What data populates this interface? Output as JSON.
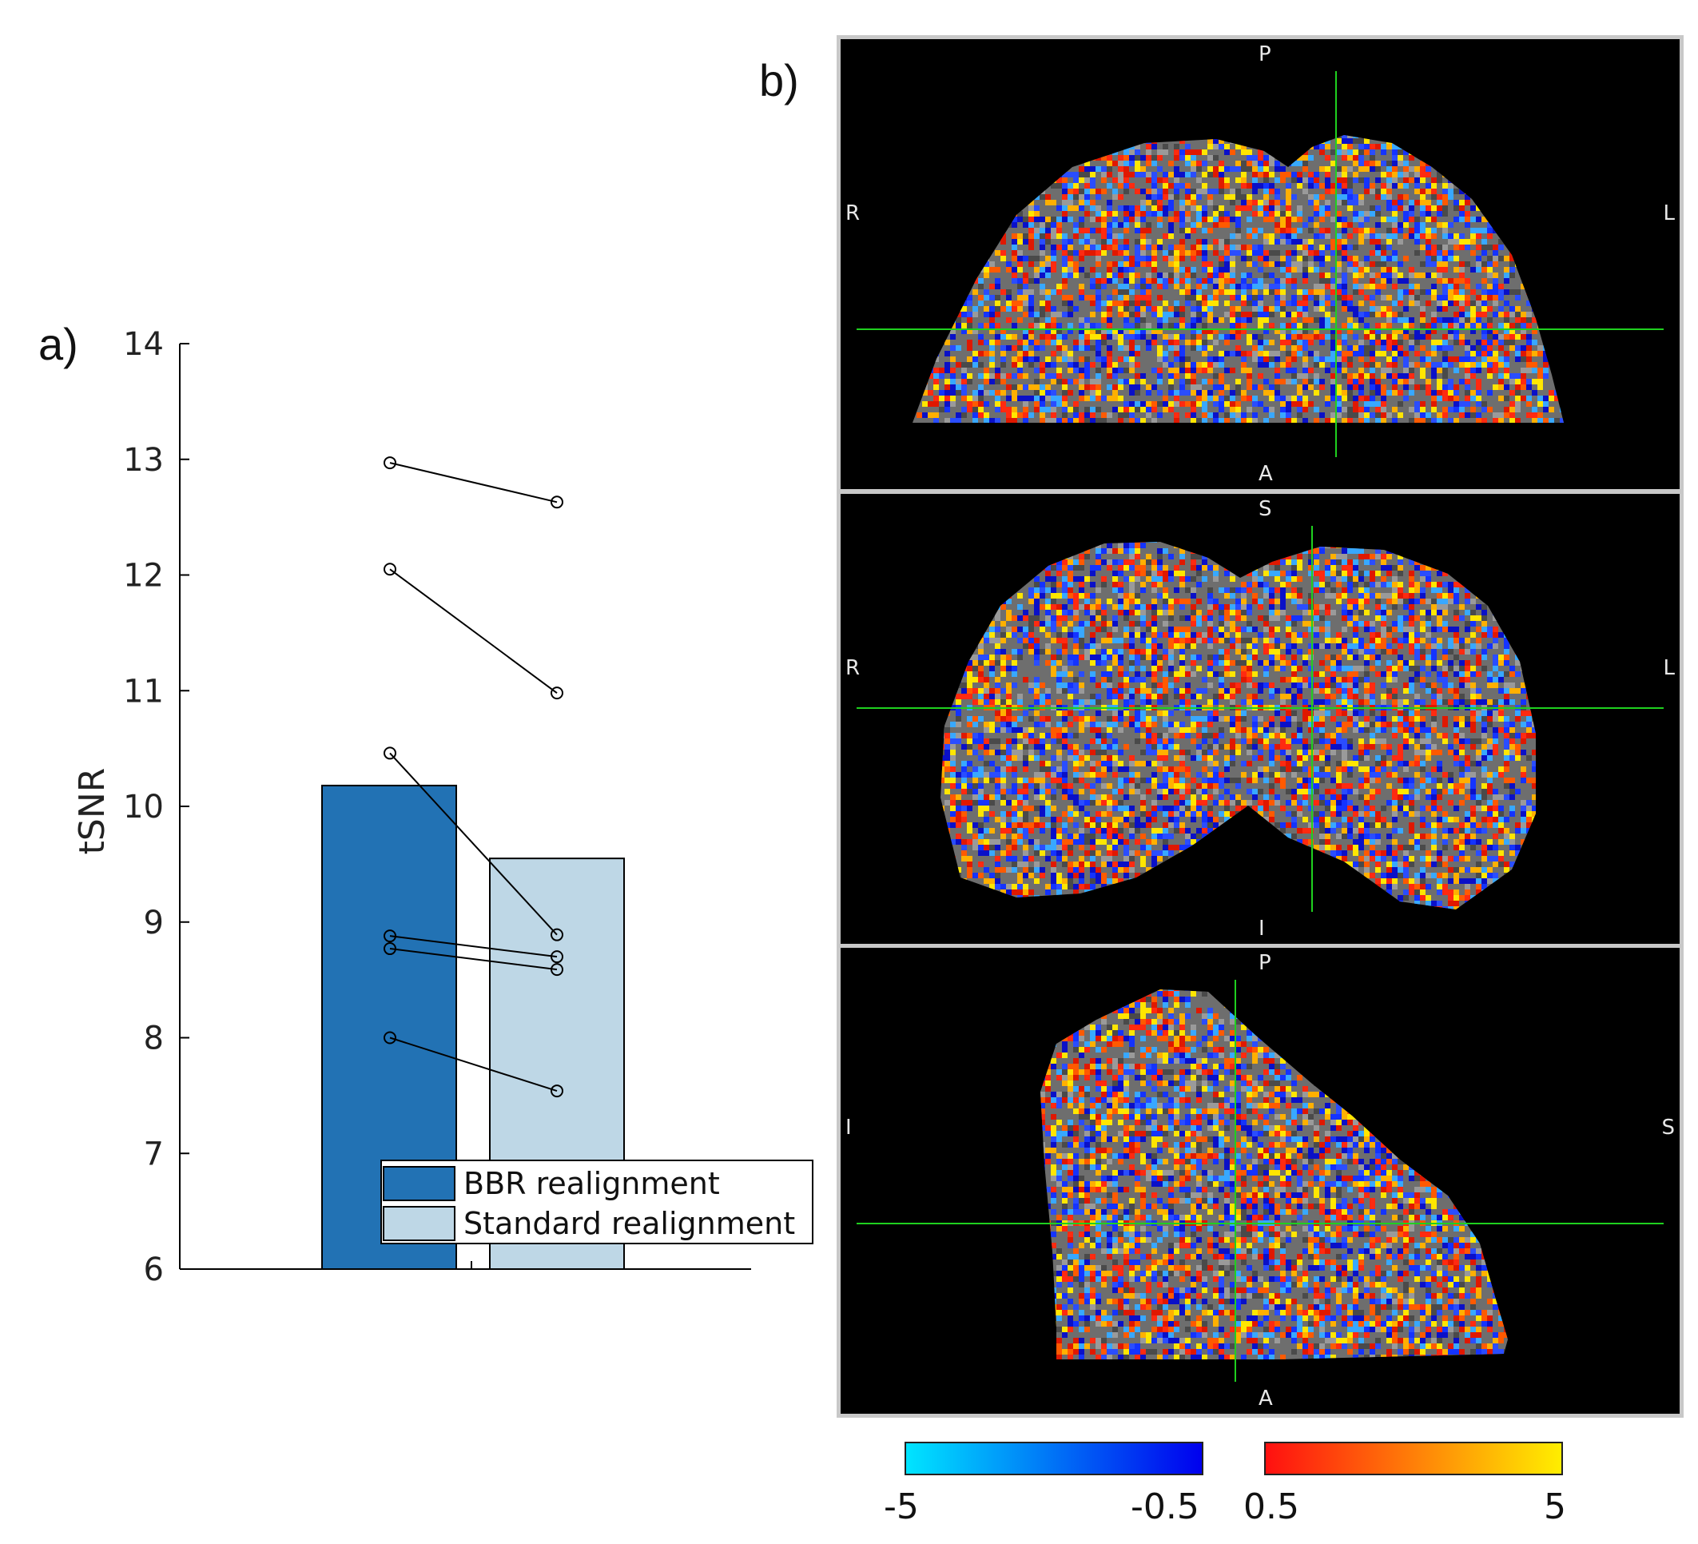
{
  "panel_a_label": "a)",
  "panel_b_label": "b)",
  "chart_data": {
    "type": "bar",
    "categories": [
      "BBR realignment",
      "Standard realignment"
    ],
    "values": [
      10.18,
      9.55
    ],
    "ylabel": "tSNR",
    "xlabel": "",
    "ylim": [
      6,
      14
    ],
    "yticks": [
      6,
      7,
      8,
      9,
      10,
      11,
      12,
      13,
      14
    ],
    "paired_subjects": [
      [
        12.97,
        12.63
      ],
      [
        12.05,
        10.98
      ],
      [
        10.46,
        8.89
      ],
      [
        8.88,
        8.7
      ],
      [
        8.77,
        8.59
      ],
      [
        8.0,
        7.54
      ]
    ],
    "legend": [
      "BBR realignment",
      "Standard realignment"
    ],
    "colors": {
      "BBR realignment": "#2272b4",
      "Standard realignment": "#bed7e6"
    }
  },
  "brain_views": [
    {
      "name": "axial",
      "top": "P",
      "bottom": "A",
      "left": "R",
      "right": "L"
    },
    {
      "name": "coronal",
      "top": "S",
      "bottom": "I",
      "left": "R",
      "right": "L"
    },
    {
      "name": "sagittal",
      "top": "P",
      "bottom": "A",
      "left": "I",
      "right": "S"
    }
  ],
  "colorbars": {
    "negative": {
      "min_label": "-5",
      "max_label": "-0.5",
      "from": "#00e5ff",
      "to": "#0000ee"
    },
    "positive": {
      "min_label": "0.5",
      "max_label": "5",
      "from": "#ff1010",
      "to": "#ffee00"
    }
  }
}
